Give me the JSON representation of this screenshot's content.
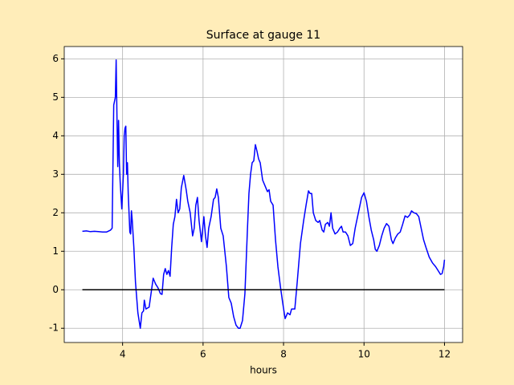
{
  "chart_data": {
    "type": "line",
    "title": "Surface at gauge 11",
    "x_label": "hours",
    "xlim": [
      2.55,
      12.45
    ],
    "ylim": [
      -1.37,
      6.32
    ],
    "xticks": [
      4,
      6,
      8,
      10,
      12
    ],
    "yticks": [
      -1,
      0,
      1,
      2,
      3,
      4,
      5,
      6
    ],
    "grid": true,
    "series": [
      {
        "color": "#0000ff",
        "x": [
          3.0,
          3.1,
          3.2,
          3.3,
          3.4,
          3.5,
          3.6,
          3.7,
          3.74,
          3.78,
          3.82,
          3.84,
          3.86,
          3.88,
          3.9,
          3.92,
          3.94,
          3.98,
          4.02,
          4.04,
          4.06,
          4.08,
          4.1,
          4.12,
          4.14,
          4.18,
          4.2,
          4.22,
          4.24,
          4.28,
          4.32,
          4.38,
          4.44,
          4.48,
          4.52,
          4.54,
          4.58,
          4.66,
          4.72,
          4.76,
          4.82,
          4.88,
          4.94,
          4.98,
          5.02,
          5.06,
          5.1,
          5.14,
          5.18,
          5.22,
          5.26,
          5.3,
          5.34,
          5.38,
          5.42,
          5.46,
          5.52,
          5.58,
          5.62,
          5.68,
          5.74,
          5.78,
          5.82,
          5.86,
          5.9,
          5.96,
          6.02,
          6.06,
          6.1,
          6.14,
          6.2,
          6.26,
          6.3,
          6.34,
          6.38,
          6.44,
          6.5,
          6.58,
          6.64,
          6.7,
          6.76,
          6.82,
          6.88,
          6.92,
          6.98,
          7.04,
          7.1,
          7.14,
          7.18,
          7.22,
          7.26,
          7.3,
          7.34,
          7.38,
          7.42,
          7.48,
          7.54,
          7.6,
          7.64,
          7.68,
          7.74,
          7.8,
          7.86,
          7.92,
          7.98,
          8.04,
          8.1,
          8.16,
          8.2,
          8.28,
          8.34,
          8.42,
          8.5,
          8.56,
          8.62,
          8.66,
          8.7,
          8.74,
          8.8,
          8.86,
          8.9,
          8.96,
          9.0,
          9.04,
          9.1,
          9.14,
          9.18,
          9.22,
          9.28,
          9.34,
          9.4,
          9.44,
          9.48,
          9.54,
          9.6,
          9.66,
          9.72,
          9.78,
          9.86,
          9.94,
          10.0,
          10.06,
          10.12,
          10.18,
          10.24,
          10.28,
          10.32,
          10.38,
          10.44,
          10.5,
          10.56,
          10.62,
          10.68,
          10.72,
          10.78,
          10.84,
          10.9,
          10.96,
          11.02,
          11.08,
          11.14,
          11.18,
          11.24,
          11.3,
          11.36,
          11.42,
          11.48,
          11.54,
          11.62,
          11.7,
          11.78,
          11.84,
          11.9,
          11.94,
          11.98,
          12.0
        ],
        "values": [
          1.52,
          1.53,
          1.51,
          1.52,
          1.51,
          1.5,
          1.5,
          1.55,
          1.6,
          4.8,
          5.0,
          5.97,
          4.5,
          3.2,
          4.4,
          3.3,
          2.8,
          2.1,
          3.0,
          4.0,
          4.2,
          4.25,
          3.0,
          3.3,
          2.5,
          1.5,
          1.45,
          2.05,
          1.8,
          1.1,
          0.2,
          -0.6,
          -1.0,
          -0.6,
          -0.55,
          -0.27,
          -0.5,
          -0.45,
          0.0,
          0.3,
          0.15,
          0.05,
          -0.1,
          -0.12,
          0.4,
          0.55,
          0.4,
          0.5,
          0.35,
          1.1,
          1.7,
          1.9,
          2.35,
          2.0,
          2.1,
          2.65,
          2.97,
          2.6,
          2.3,
          2.0,
          1.4,
          1.6,
          2.2,
          2.4,
          1.8,
          1.25,
          1.9,
          1.4,
          1.1,
          1.6,
          1.9,
          2.35,
          2.4,
          2.62,
          2.4,
          1.6,
          1.4,
          0.6,
          -0.2,
          -0.35,
          -0.7,
          -0.92,
          -1.0,
          -1.0,
          -0.8,
          -0.1,
          1.5,
          2.5,
          3.0,
          3.3,
          3.35,
          3.77,
          3.6,
          3.4,
          3.3,
          2.85,
          2.7,
          2.55,
          2.6,
          2.3,
          2.2,
          1.3,
          0.6,
          0.1,
          -0.35,
          -0.75,
          -0.6,
          -0.65,
          -0.5,
          -0.5,
          0.2,
          1.2,
          1.8,
          2.2,
          2.57,
          2.5,
          2.5,
          2.0,
          1.8,
          1.75,
          1.8,
          1.55,
          1.5,
          1.7,
          1.75,
          1.65,
          2.0,
          1.6,
          1.45,
          1.5,
          1.6,
          1.65,
          1.5,
          1.5,
          1.4,
          1.15,
          1.2,
          1.6,
          2.0,
          2.4,
          2.52,
          2.3,
          1.9,
          1.55,
          1.3,
          1.05,
          1.0,
          1.15,
          1.4,
          1.6,
          1.72,
          1.65,
          1.3,
          1.2,
          1.35,
          1.45,
          1.5,
          1.7,
          1.92,
          1.88,
          1.95,
          2.05,
          2.0,
          1.98,
          1.9,
          1.6,
          1.3,
          1.1,
          0.85,
          0.7,
          0.6,
          0.5,
          0.4,
          0.42,
          0.6,
          0.78
        ]
      },
      {
        "color": "#000000",
        "x": [
          3,
          12
        ],
        "values": [
          0,
          0
        ]
      }
    ]
  }
}
